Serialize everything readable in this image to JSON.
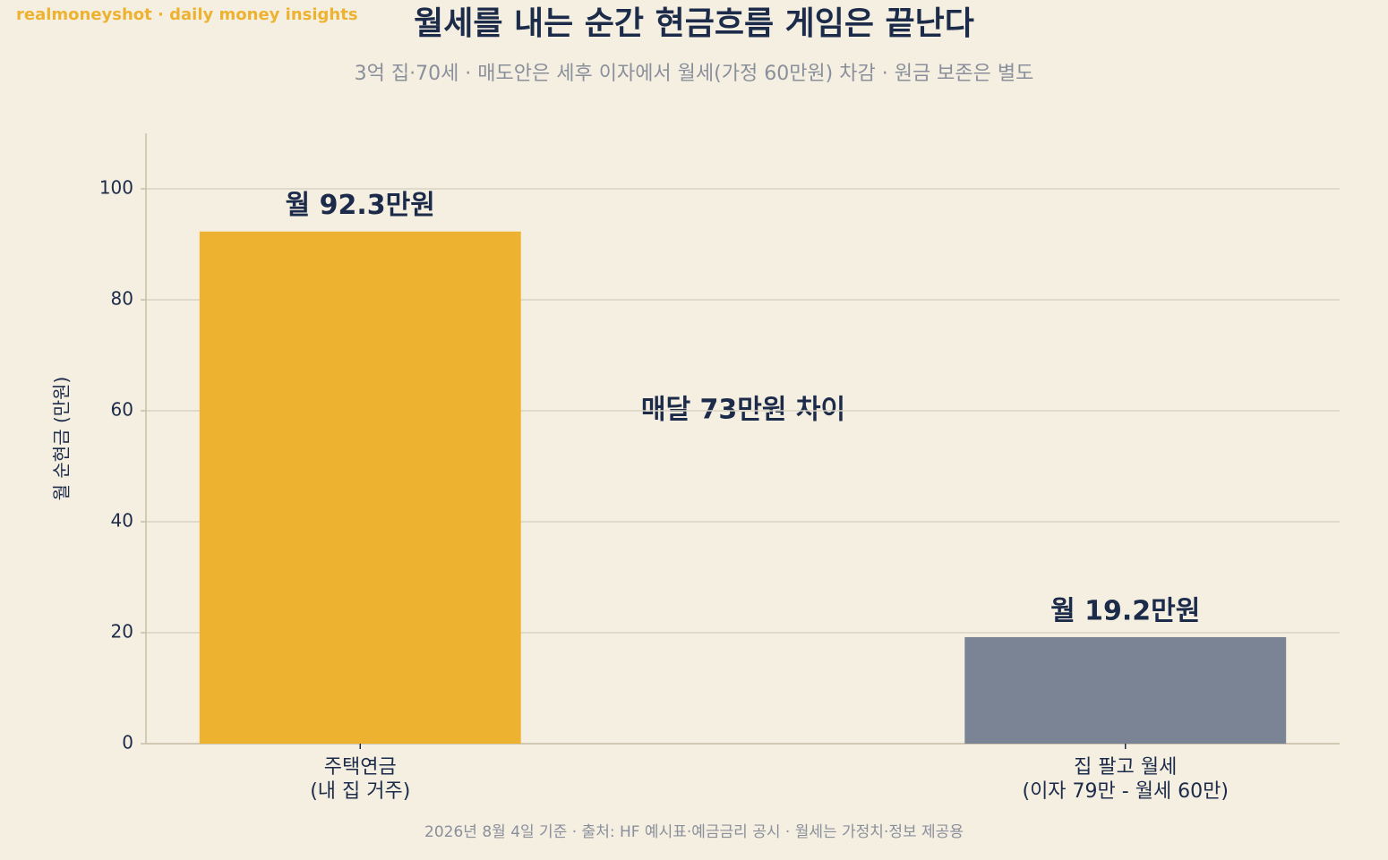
{
  "chart_data": {
    "type": "bar",
    "brand": "realmoneyshot · daily money insights",
    "title": "월세를 내는 순간 현금흐름 게임은 끝난다",
    "subtitle": "3억 집·70세 · 매도안은 세후 이자에서 월세(가정 60만원) 차감 · 원금 보존은 별도",
    "y_label": "월 순현금 (만원)",
    "categories": [
      "주택연금\n(내 집 거주)",
      "집 팔고 월세\n(이자 79만 - 월세 60만)"
    ],
    "values": [
      92.3,
      19.2
    ],
    "value_labels": [
      "월 92.3만원",
      "월 19.2만원"
    ],
    "colors": [
      "#edb230",
      "#7b8494"
    ],
    "annotation": "매달 73만원 차이",
    "footer": "2026년 8월 4일 기준 · 출처: HF 예시표·예금금리 공시 · 월세는 가정치·정보 제공용",
    "ylim": [
      0,
      110
    ],
    "yticks": [
      0,
      20,
      40,
      60,
      80,
      100
    ],
    "grid": true
  }
}
